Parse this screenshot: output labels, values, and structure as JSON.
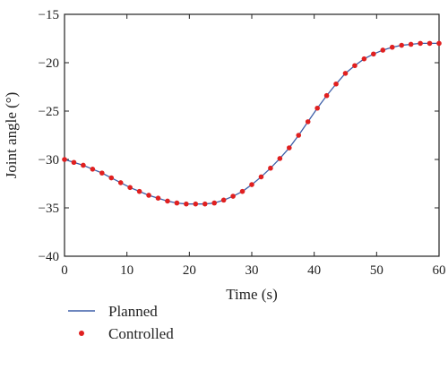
{
  "chart_data": {
    "type": "line",
    "xlabel": "Time (s)",
    "ylabel": "Joint angle (°)",
    "xlim": [
      0,
      60
    ],
    "ylim": [
      -40,
      -15
    ],
    "xticks": [
      0,
      10,
      20,
      30,
      40,
      50,
      60
    ],
    "yticks": [
      -15,
      -20,
      -25,
      -30,
      -35,
      -40
    ],
    "xtick_labels": [
      "0",
      "10",
      "20",
      "30",
      "40",
      "50",
      "60"
    ],
    "ytick_labels": [
      "−15",
      "−20",
      "−25",
      "−30",
      "−35",
      "−40"
    ],
    "grid": false,
    "legend_position": "below",
    "series": [
      {
        "name": "Planned",
        "style": "line",
        "color": "#3d5fa8",
        "x": [
          0,
          1.5,
          3,
          4.5,
          6,
          7.5,
          9,
          10.5,
          12,
          13.5,
          15,
          16.5,
          18,
          19.5,
          21,
          22.5,
          24,
          25.5,
          27,
          28.5,
          30,
          31.5,
          33,
          34.5,
          36,
          37.5,
          39,
          40.5,
          42,
          43.5,
          45,
          46.5,
          48,
          49.5,
          51,
          52.5,
          54,
          55.5,
          57,
          58.5,
          60
        ],
        "y": [
          -30.0,
          -30.3,
          -30.6,
          -31.0,
          -31.4,
          -31.9,
          -32.4,
          -32.9,
          -33.3,
          -33.7,
          -34.0,
          -34.3,
          -34.5,
          -34.6,
          -34.6,
          -34.6,
          -34.5,
          -34.2,
          -33.8,
          -33.3,
          -32.6,
          -31.8,
          -30.9,
          -29.9,
          -28.8,
          -27.5,
          -26.1,
          -24.7,
          -23.4,
          -22.2,
          -21.1,
          -20.3,
          -19.6,
          -19.1,
          -18.7,
          -18.4,
          -18.2,
          -18.1,
          -18.0,
          -18.0,
          -18.0
        ]
      },
      {
        "name": "Controlled",
        "style": "markers",
        "color": "#e02020",
        "x": [
          0,
          1.5,
          3,
          4.5,
          6,
          7.5,
          9,
          10.5,
          12,
          13.5,
          15,
          16.5,
          18,
          19.5,
          21,
          22.5,
          24,
          25.5,
          27,
          28.5,
          30,
          31.5,
          33,
          34.5,
          36,
          37.5,
          39,
          40.5,
          42,
          43.5,
          45,
          46.5,
          48,
          49.5,
          51,
          52.5,
          54,
          55.5,
          57,
          58.5,
          60
        ],
        "y": [
          -30.0,
          -30.3,
          -30.6,
          -31.0,
          -31.4,
          -31.9,
          -32.4,
          -32.9,
          -33.3,
          -33.7,
          -34.0,
          -34.3,
          -34.5,
          -34.6,
          -34.6,
          -34.6,
          -34.5,
          -34.2,
          -33.8,
          -33.3,
          -32.6,
          -31.8,
          -30.9,
          -29.9,
          -28.8,
          -27.5,
          -26.1,
          -24.7,
          -23.4,
          -22.2,
          -21.1,
          -20.3,
          -19.6,
          -19.1,
          -18.7,
          -18.4,
          -18.2,
          -18.1,
          -18.0,
          -18.0,
          -18.0
        ]
      }
    ]
  }
}
